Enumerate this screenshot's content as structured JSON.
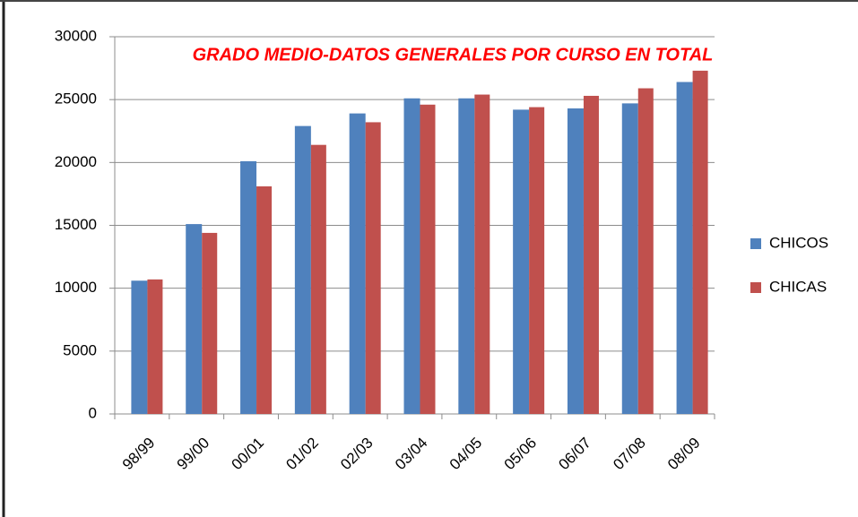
{
  "chart_data": {
    "type": "bar",
    "title": "GRADO MEDIO-DATOS GENERALES POR CURSO EN TOTAL",
    "categories": [
      "98/99",
      "99/00",
      "00/01",
      "01/02",
      "02/03",
      "03/04",
      "04/05",
      "05/06",
      "06/07",
      "07/08",
      "08/09"
    ],
    "series": [
      {
        "name": "CHICOS",
        "color": "#4f81bd",
        "values": [
          10600,
          15100,
          20100,
          22900,
          23900,
          25100,
          25100,
          24200,
          24300,
          24700,
          26400
        ]
      },
      {
        "name": "CHICAS",
        "color": "#c0504d",
        "values": [
          10700,
          14400,
          18100,
          21400,
          23200,
          24600,
          25400,
          24400,
          25300,
          25900,
          27300
        ]
      }
    ],
    "ylim": [
      0,
      30000
    ],
    "yticks": [
      0,
      5000,
      10000,
      15000,
      20000,
      25000,
      30000
    ],
    "grid": true,
    "legend": "right"
  }
}
